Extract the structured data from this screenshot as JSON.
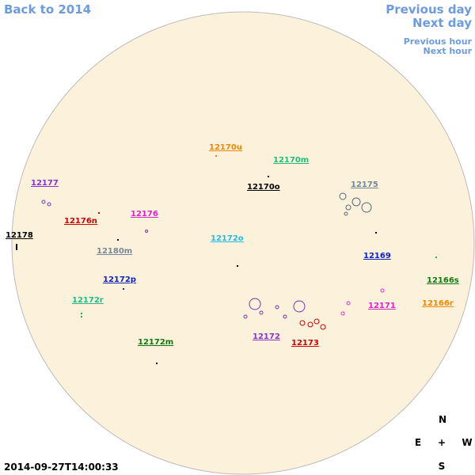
{
  "navigation": {
    "back_year": "Back to 2014",
    "previous_day": "Previous day",
    "next_day": "Next day",
    "previous_hour": "Previous hour",
    "next_hour": "Next hour"
  },
  "regions": [
    "12170u",
    "12170m",
    "12170o",
    "12175",
    "12177",
    "12176n",
    "12176",
    "12178",
    "12172o",
    "12180m",
    "12169",
    "12172p",
    "12166s",
    "12172r",
    "12171",
    "12166r",
    "12172m",
    "12172",
    "12173"
  ],
  "compass": {
    "north": "N",
    "east": "E",
    "center": "+",
    "west": "W",
    "south": "S"
  },
  "timestamp": "2014-09-27T14:00:33"
}
